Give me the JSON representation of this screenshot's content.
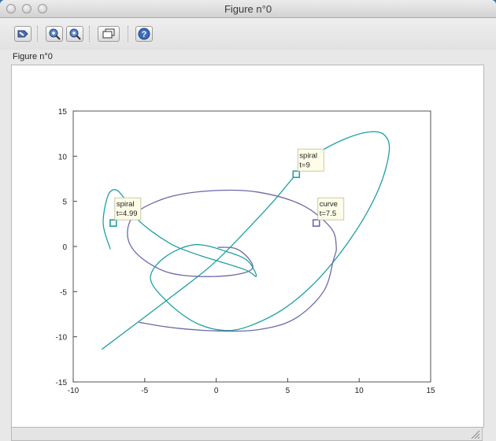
{
  "window": {
    "title": "Figure n°0"
  },
  "figure_label": "Figure n°0",
  "toolbar": {
    "buttons": [
      {
        "name": "rotate-button",
        "icon": "rotate-icon"
      },
      {
        "name": "zoom-in-button",
        "icon": "zoom-in-icon"
      },
      {
        "name": "zoom-out-button",
        "icon": "zoom-out-icon"
      },
      {
        "name": "datatip-button",
        "icon": "datatip-icon"
      },
      {
        "name": "help-button",
        "icon": "help-icon"
      }
    ]
  },
  "chart_data": {
    "type": "line",
    "xlim": [
      -10,
      15
    ],
    "ylim": [
      -15,
      15
    ],
    "x_ticks": [
      "-10",
      "-5",
      "0",
      "5",
      "10",
      "15"
    ],
    "y_ticks": [
      "-15",
      "-10",
      "-5",
      "0",
      "5",
      "10",
      "15"
    ],
    "colors": {
      "spiral": "#20a0a0",
      "curve": "#6c6aa8"
    },
    "series": [
      {
        "name": "spiral",
        "points": [
          [
            -8,
            -11.4
          ],
          [
            -2,
            -4.2
          ],
          [
            0,
            -1.6
          ],
          [
            2,
            1.6
          ],
          [
            4,
            5
          ],
          [
            5.6,
            8
          ],
          [
            7,
            10.2
          ],
          [
            9,
            11.9
          ],
          [
            10.8,
            12.7
          ],
          [
            11.8,
            12.3
          ],
          [
            12.1,
            10.5
          ],
          [
            11.4,
            6.5
          ],
          [
            9.8,
            1.8
          ],
          [
            7.5,
            -3
          ],
          [
            5,
            -6.6
          ],
          [
            2.5,
            -8.7
          ],
          [
            0.6,
            -9.3
          ],
          [
            -1.5,
            -8.4
          ],
          [
            -3.5,
            -6
          ],
          [
            -4.6,
            -3.5
          ],
          [
            -3.6,
            -1.2
          ],
          [
            -1.5,
            0.2
          ],
          [
            0.8,
            -0.6
          ],
          [
            2.2,
            -1.6
          ],
          [
            2.8,
            -3.3
          ],
          [
            1.9,
            -2.5
          ],
          [
            -1.5,
            -0.8
          ],
          [
            -3.4,
            0.5
          ],
          [
            -5.5,
            3
          ],
          [
            -6.5,
            5.5
          ],
          [
            -7.1,
            6.3
          ],
          [
            -7.6,
            5.5
          ],
          [
            -7.9,
            2.5
          ],
          [
            -7.4,
            -0.3
          ]
        ]
      },
      {
        "name": "curve",
        "points": [
          [
            -5.4,
            -8.4
          ],
          [
            -3,
            -9
          ],
          [
            0,
            -9.35
          ],
          [
            3,
            -9.2
          ],
          [
            5.5,
            -8
          ],
          [
            7.5,
            -5
          ],
          [
            8.2,
            -1.5
          ],
          [
            8.4,
            0
          ],
          [
            8,
            2.1
          ],
          [
            6,
            4.6
          ],
          [
            3,
            6
          ],
          [
            0,
            6.2
          ],
          [
            -3,
            5.6
          ],
          [
            -5.3,
            4.1
          ],
          [
            -6.1,
            2.5
          ],
          [
            -6.1,
            0.5
          ],
          [
            -5.2,
            -1.3
          ],
          [
            -3.5,
            -2.8
          ],
          [
            -1.5,
            -3.3
          ],
          [
            1,
            -3.2
          ],
          [
            2.5,
            -2.5
          ],
          [
            2.2,
            -1.2
          ],
          [
            1.3,
            -0.2
          ],
          [
            0.1,
            -0.1
          ]
        ]
      }
    ],
    "datatips": [
      {
        "series": "spiral",
        "x": -7.2,
        "y": 2.6,
        "line1": "spiral",
        "line2": "t=4.99"
      },
      {
        "series": "spiral",
        "x": 5.6,
        "y": 8.0,
        "line1": "spiral",
        "line2": "t=9"
      },
      {
        "series": "curve",
        "x": 7.0,
        "y": 2.6,
        "line1": "curve",
        "line2": "t=7.5"
      }
    ]
  }
}
